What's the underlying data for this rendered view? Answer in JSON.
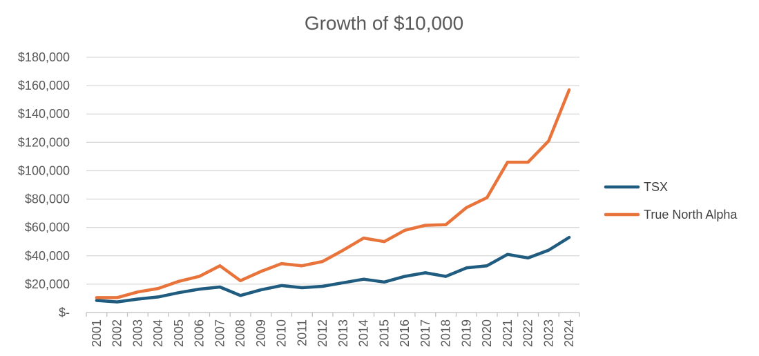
{
  "chart_data": {
    "type": "line",
    "title": "Growth of $10,000",
    "xlabel": "",
    "ylabel": "",
    "x": [
      "2001",
      "2002",
      "2003",
      "2004",
      "2005",
      "2006",
      "2007",
      "2008",
      "2009",
      "2010",
      "2011",
      "2012",
      "2013",
      "2014",
      "2015",
      "2016",
      "2017",
      "2018",
      "2019",
      "2020",
      "2021",
      "2022",
      "2023",
      "2024"
    ],
    "series": [
      {
        "name": "TSX",
        "color": "#1f5c7f",
        "values": [
          8500,
          7500,
          9500,
          11000,
          14000,
          16500,
          18000,
          12000,
          16000,
          19000,
          17500,
          18500,
          21000,
          23500,
          21500,
          25500,
          28000,
          25500,
          31500,
          33000,
          41000,
          38500,
          44000,
          53000
        ]
      },
      {
        "name": "True North Alpha",
        "color": "#e8743b",
        "values": [
          10500,
          10500,
          14500,
          17000,
          22000,
          25500,
          33000,
          22500,
          29000,
          34500,
          33000,
          36000,
          44000,
          52500,
          50000,
          58000,
          61500,
          62000,
          74000,
          81000,
          106000,
          106000,
          121000,
          157000
        ]
      }
    ],
    "ylim": [
      0,
      180000
    ],
    "yticks": [
      {
        "value": 0,
        "label": "$-"
      },
      {
        "value": 20000,
        "label": "$20,000"
      },
      {
        "value": 40000,
        "label": "$40,000"
      },
      {
        "value": 60000,
        "label": "$60,000"
      },
      {
        "value": 80000,
        "label": "$80,000"
      },
      {
        "value": 100000,
        "label": "$100,000"
      },
      {
        "value": 120000,
        "label": "$120,000"
      },
      {
        "value": 140000,
        "label": "$140,000"
      },
      {
        "value": 160000,
        "label": "$160,000"
      },
      {
        "value": 180000,
        "label": "$180,000"
      }
    ],
    "grid": true,
    "legend_position": "right",
    "gridline_color": "#d9d9d9",
    "axis_color": "#bfbfbf"
  }
}
